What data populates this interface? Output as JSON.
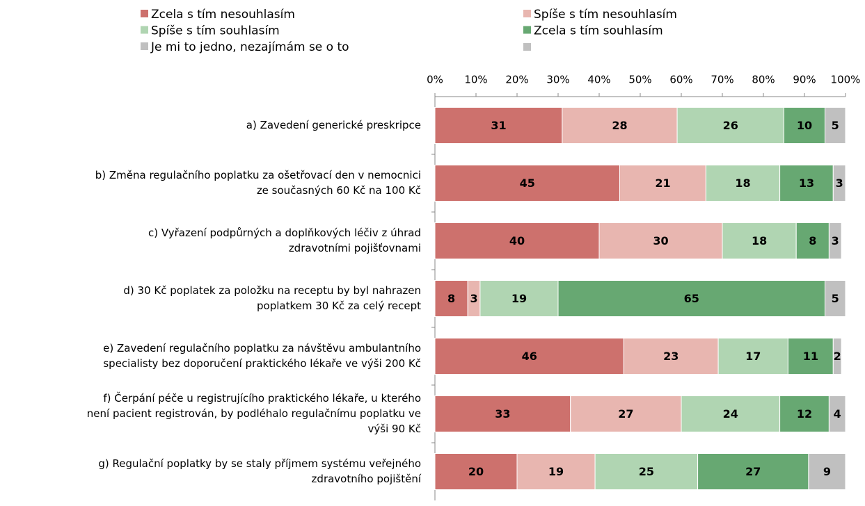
{
  "chart_data": {
    "type": "stacked_barh",
    "categories": [
      [
        "a)  Zavedení generické preskripce"
      ],
      [
        "b)  Změna regulačního poplatku za ošetřovací den v nemocnici",
        "ze současných 60 Kč na 100 Kč"
      ],
      [
        "c)  Vyřazení podpůrných a doplňkových léčiv z úhrad",
        "zdravotními pojišťovnami"
      ],
      [
        "d)  30 Kč poplatek za položku na receptu by byl nahrazen",
        "poplatkem 30 Kč za celý recept"
      ],
      [
        "e)  Zavedení regulačního poplatku za návštěvu ambulantního",
        "specialisty bez doporučení praktického lékaře ve výši 200 Kč"
      ],
      [
        "f) Čerpání péče u registrujícího praktického lékaře, u kterého",
        "není pacient registrován, by podléhalo regulačnímu poplatku ve",
        "výši 90 Kč"
      ],
      [
        "g)  Regulační poplatky by se staly příjmem systému veřejného",
        "zdravotního pojištění"
      ]
    ],
    "series": [
      {
        "name": "Zcela s tím nesouhlasím",
        "color": "#cd716d",
        "values": [
          31,
          45,
          40,
          8,
          46,
          33,
          20
        ]
      },
      {
        "name": "Spíše s tím nesouhlasím",
        "color": "#e8b6b0",
        "values": [
          28,
          21,
          30,
          3,
          23,
          27,
          19
        ]
      },
      {
        "name": "Spíše s tím souhlasím",
        "color": "#b0d5b2",
        "values": [
          26,
          18,
          18,
          19,
          17,
          24,
          25
        ]
      },
      {
        "name": "Zcela s tím souhlasím",
        "color": "#67a872",
        "values": [
          10,
          13,
          8,
          65,
          11,
          12,
          27
        ]
      },
      {
        "name": "Je mi to jedno, nezajímám se o to",
        "color": "#c0c0c0",
        "values": [
          5,
          3,
          3,
          5,
          2,
          4,
          9
        ]
      }
    ],
    "xlim": [
      0,
      100
    ],
    "xticks": [
      {
        "value": 0,
        "label": "0%"
      },
      {
        "value": 10,
        "label": "10%"
      },
      {
        "value": 20,
        "label": "20%"
      },
      {
        "value": 30,
        "label": "30%"
      },
      {
        "value": 40,
        "label": "40%"
      },
      {
        "value": 50,
        "label": "50%"
      },
      {
        "value": 60,
        "label": "60%"
      },
      {
        "value": 70,
        "label": "70%"
      },
      {
        "value": 80,
        "label": "80%"
      },
      {
        "value": 90,
        "label": "90%"
      },
      {
        "value": 100,
        "label": "100%"
      }
    ]
  }
}
